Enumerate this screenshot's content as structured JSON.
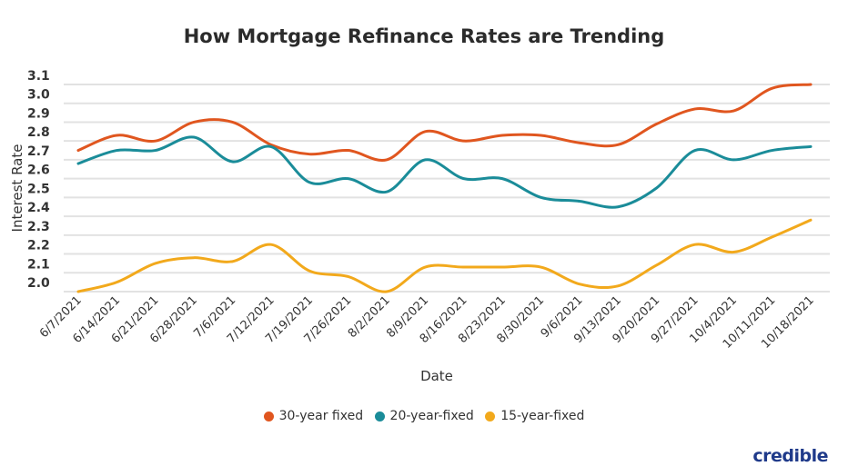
{
  "chart_data": {
    "type": "line",
    "title": "How Mortgage Refinance Rates are Trending",
    "xlabel": "Date",
    "ylabel": "Interest Rate",
    "ylim": [
      2.0,
      3.1
    ],
    "yticks": [
      "3.1",
      "3.0",
      "2.9",
      "2.8",
      "2.7",
      "2.6",
      "2.5",
      "2.4",
      "2.3",
      "2.2",
      "2.1",
      "2.0"
    ],
    "grid": true,
    "legend_position": "bottom",
    "categories": [
      "6/7/2021",
      "6/14/2021",
      "6/21/2021",
      "6/28/2021",
      "7/6/2021",
      "7/12/2021",
      "7/19/2021",
      "7/26/2021",
      "8/2/2021",
      "8/9/2021",
      "8/16/2021",
      "8/23/2021",
      "8/30/2021",
      "9/6/2021",
      "9/13/2021",
      "9/20/2021",
      "9/27/2021",
      "10/4/2021",
      "10/11/2021",
      "10/18/2021"
    ],
    "series": [
      {
        "name": "30-year fixed",
        "color": "#e0561f",
        "values": [
          2.75,
          2.83,
          2.8,
          2.9,
          2.9,
          2.78,
          2.73,
          2.75,
          2.7,
          2.85,
          2.8,
          2.83,
          2.83,
          2.79,
          2.78,
          2.89,
          2.97,
          2.96,
          3.08,
          3.1
        ]
      },
      {
        "name": "20-year-fixed",
        "color": "#1a8c99",
        "values": [
          2.68,
          2.75,
          2.75,
          2.82,
          2.69,
          2.77,
          2.58,
          2.6,
          2.53,
          2.7,
          2.6,
          2.6,
          2.5,
          2.48,
          2.45,
          2.55,
          2.75,
          2.7,
          2.75,
          2.77
        ]
      },
      {
        "name": "15-year-fixed",
        "color": "#f2a91c",
        "values": [
          2.0,
          2.05,
          2.15,
          2.18,
          2.16,
          2.25,
          2.11,
          2.08,
          2.0,
          2.13,
          2.13,
          2.13,
          2.13,
          2.04,
          2.03,
          2.14,
          2.25,
          2.21,
          2.29,
          2.38
        ]
      }
    ]
  },
  "brand": {
    "logo_text": "credible",
    "color": "#1f3a8a"
  }
}
